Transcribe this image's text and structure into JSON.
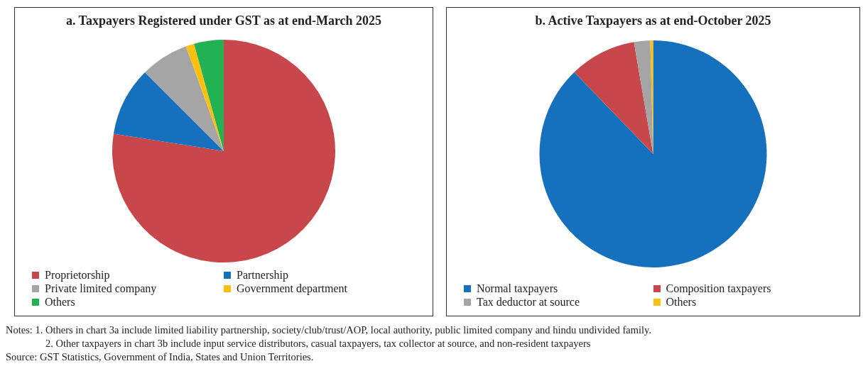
{
  "chart_data": [
    {
      "type": "pie",
      "title": "a. Taxpayers Registered under GST as at end-March 2025",
      "categories": [
        "Proprietorship",
        "Partnership",
        "Private limited company",
        "Government department",
        "Others"
      ],
      "values": [
        77.5,
        10,
        7,
        1.2,
        4.3
      ],
      "colors": [
        "#c8474a",
        "#1570bd",
        "#a5a5a5",
        "#f9c00f",
        "#22b254"
      ],
      "legend": "bottom"
    },
    {
      "type": "pie",
      "title": "b. Active Taxpayers as at end-October 2025",
      "categories": [
        "Normal taxpayers",
        "Composition taxpayers",
        "Tax deductor at source",
        "Others"
      ],
      "values": [
        87.8,
        9.5,
        2.3,
        0.4
      ],
      "colors": [
        "#1570bd",
        "#c8474a",
        "#a5a5a5",
        "#f9c00f"
      ],
      "legend": "bottom",
      "annotations": [
        "Notes: 1. Others in chart 3a include limited liability partnership, society/club/trust/AOP, local authority, public limited company and hindu undivided family.",
        "2. Other taxpayers in chart 3b include input service distributors, casual taxpayers, tax collector at source, and non-resident taxpayers",
        "Source: GST Statistics, Government of India, States and Union Territories."
      ]
    }
  ]
}
